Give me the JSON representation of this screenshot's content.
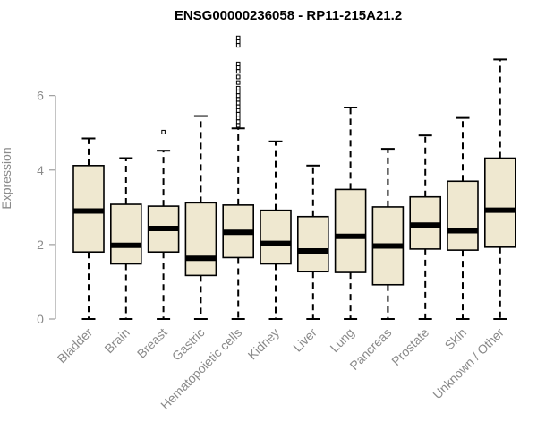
{
  "colors": {
    "box_fill": "#efe8d0",
    "box_stroke": "#000000",
    "axis": "#8a8a8a",
    "text_muted": "#8a8a8a"
  },
  "chart_data": {
    "type": "box",
    "title": "ENSG00000236058 - RP11-215A21.2",
    "xlabel": "",
    "ylabel": "Expression",
    "ylim": [
      0,
      7.6
    ],
    "yticks": [
      0,
      2,
      4,
      6
    ],
    "yticks_text": [
      "0",
      "2",
      "4",
      "6"
    ],
    "categories": [
      "Bladder",
      "Brain",
      "Breast",
      "Gastric",
      "Hematopoietic cells",
      "Kidney",
      "Liver",
      "Lung",
      "Pancreas",
      "Prostate",
      "Skin",
      "Unknown / Other"
    ],
    "boxes": [
      {
        "min": 0,
        "q1": 1.8,
        "median": 2.9,
        "q3": 4.12,
        "max": 4.85,
        "outliers": []
      },
      {
        "min": 0,
        "q1": 1.48,
        "median": 1.98,
        "q3": 3.08,
        "max": 4.32,
        "outliers": []
      },
      {
        "min": 0,
        "q1": 1.8,
        "median": 2.43,
        "q3": 3.03,
        "max": 4.52,
        "outliers": [
          5.02
        ]
      },
      {
        "min": 0,
        "q1": 1.17,
        "median": 1.63,
        "q3": 3.12,
        "max": 5.45,
        "outliers": []
      },
      {
        "min": 0,
        "q1": 1.65,
        "median": 2.33,
        "q3": 3.06,
        "max": 5.12,
        "outliers": [
          5.2,
          5.3,
          5.4,
          5.5,
          5.6,
          5.7,
          5.8,
          5.9,
          6.0,
          6.1,
          6.2,
          6.35,
          6.5,
          6.65,
          6.75,
          6.85,
          7.35,
          7.45,
          7.55
        ]
      },
      {
        "min": 0,
        "q1": 1.48,
        "median": 2.03,
        "q3": 2.92,
        "max": 4.77,
        "outliers": []
      },
      {
        "min": 0,
        "q1": 1.27,
        "median": 1.83,
        "q3": 2.75,
        "max": 4.12,
        "outliers": []
      },
      {
        "min": 0,
        "q1": 1.25,
        "median": 2.22,
        "q3": 3.48,
        "max": 5.68,
        "outliers": []
      },
      {
        "min": 0,
        "q1": 0.92,
        "median": 1.96,
        "q3": 3.01,
        "max": 4.57,
        "outliers": []
      },
      {
        "min": 0,
        "q1": 1.88,
        "median": 2.52,
        "q3": 3.28,
        "max": 4.93,
        "outliers": []
      },
      {
        "min": 0,
        "q1": 1.85,
        "median": 2.37,
        "q3": 3.7,
        "max": 5.4,
        "outliers": []
      },
      {
        "min": 0,
        "q1": 1.93,
        "median": 2.92,
        "q3": 4.32,
        "max": 6.97,
        "outliers": []
      }
    ]
  }
}
